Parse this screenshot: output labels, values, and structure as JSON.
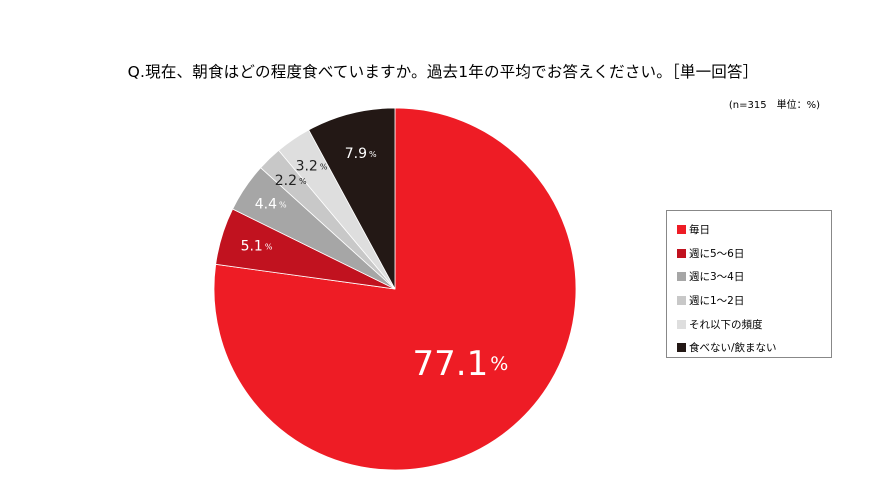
{
  "chart_data": {
    "type": "pie",
    "title": "Q.現在、朝食はどの程度食べていますか。過去1年の平均でお答えください。［単一回答］",
    "subtitle": "(n=315　単位：%)",
    "categories": [
      "毎日",
      "週に5～6日",
      "週に3～4日",
      "週に1～2日",
      "それ以下の頻度",
      "食べない/飲まない"
    ],
    "values": [
      77.1,
      5.1,
      4.4,
      2.2,
      3.2,
      7.9
    ],
    "value_labels": [
      "77.1",
      "5.1",
      "4.4",
      "2.2",
      "3.2",
      "7.9"
    ],
    "unit_suffix": "%",
    "colors": [
      "#ee1c25",
      "#c1121f",
      "#a6a6a6",
      "#c8c8c8",
      "#dedede",
      "#231815"
    ],
    "label_colors": [
      "#ffffff",
      "#ffffff",
      "#ffffff",
      "#222222",
      "#222222",
      "#ffffff"
    ],
    "start": "12 o'clock",
    "direction": "clockwise",
    "legend": "right"
  }
}
